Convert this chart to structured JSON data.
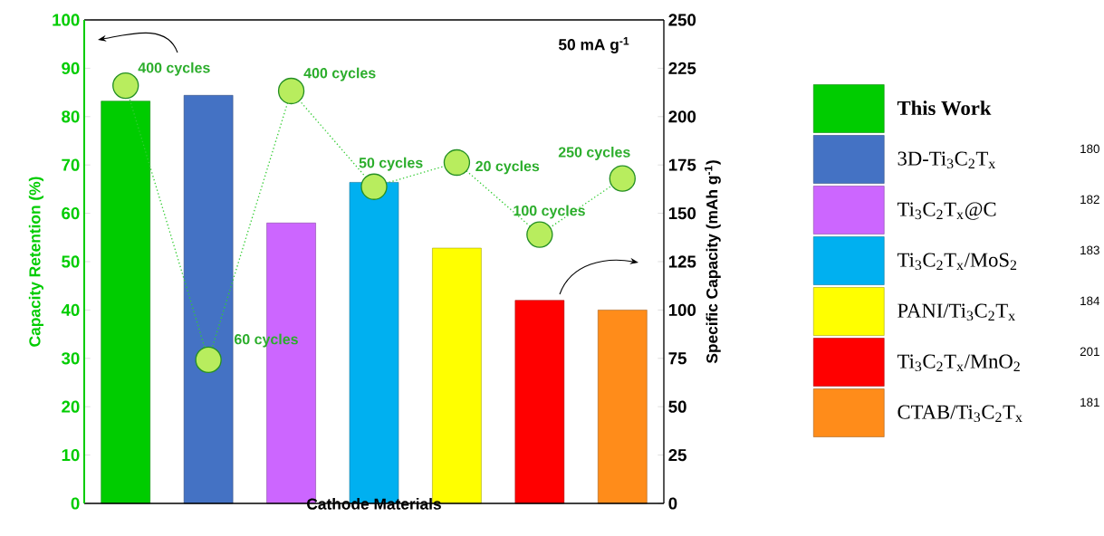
{
  "chart_data": {
    "type": "bar",
    "xlabel": "Cathode Materials",
    "ylabel": "Capacity Retention (%)",
    "y2label": "Specific Capacity (mAh g$^{-1}$)",
    "categories": [
      null,
      null,
      null,
      null,
      null,
      null,
      null
    ],
    "series": [
      {
        "name": "This Work",
        "color": "#00cc00",
        "axis": "y2",
        "values": [
          208,
          null,
          null,
          null,
          null,
          null,
          null
        ]
      },
      {
        "name": "3D-Ti$_{3}$C$_{2}$T$_{x}$",
        "color": "#4472c4",
        "axis": "y2",
        "values": [
          null,
          211,
          null,
          null,
          null,
          null,
          null
        ]
      },
      {
        "name": "Ti$_{3}$C$_{2}$T$_{x}$@C",
        "color": "#cc66ff",
        "axis": "y2",
        "values": [
          null,
          null,
          145,
          null,
          null,
          null,
          null
        ]
      },
      {
        "name": "Ti$_{3}$C$_{2}$T$_{x}$/MoS$_{2}$",
        "color": "#00b0f0",
        "axis": "y2",
        "values": [
          null,
          null,
          null,
          166,
          null,
          null,
          null
        ]
      },
      {
        "name": "PANI/Ti$_{3}$C$_{2}$T$_{x}$",
        "color": "#ffff00",
        "axis": "y2",
        "values": [
          null,
          null,
          null,
          null,
          132,
          null,
          null
        ]
      },
      {
        "name": "Ti$_{3}$C$_{2}$T$_{x}$/MnO$_{2}$",
        "color": "#ff0000",
        "axis": "y2",
        "values": [
          null,
          null,
          null,
          null,
          null,
          105,
          null
        ]
      },
      {
        "name": "CTAB/Ti$_{3}$C$_{2}$T$_{x}$",
        "color": "#ff8c1a",
        "axis": "y2",
        "values": [
          null,
          null,
          null,
          null,
          null,
          null,
          100
        ]
      },
      {
        "type": "line",
        "color": "#33cc33",
        "axis": "y",
        "values": [
          86.4,
          29.7,
          85.3,
          65.5,
          70.5,
          55.6,
          67.2
        ]
      }
    ],
    "ylim": [
      0,
      100
    ],
    "yticks": [
      0,
      10,
      20,
      30,
      40,
      50,
      60,
      70,
      80,
      90,
      100
    ],
    "y2lim": [
      0,
      250
    ],
    "y2ticks": [
      0,
      25,
      50,
      75,
      100,
      125,
      150,
      175,
      200,
      225,
      250
    ],
    "marker": "circle",
    "line_style": "dotted",
    "legend": "right",
    "annotations": [
      "400 cycles",
      "60 cycles",
      "400 cycles",
      "50 cycles",
      "20 cycles",
      "100 cycles",
      "250 cycles",
      "50 mA g$^{-1}$",
      "180",
      "182",
      "183",
      "184",
      "201",
      "181"
    ]
  }
}
